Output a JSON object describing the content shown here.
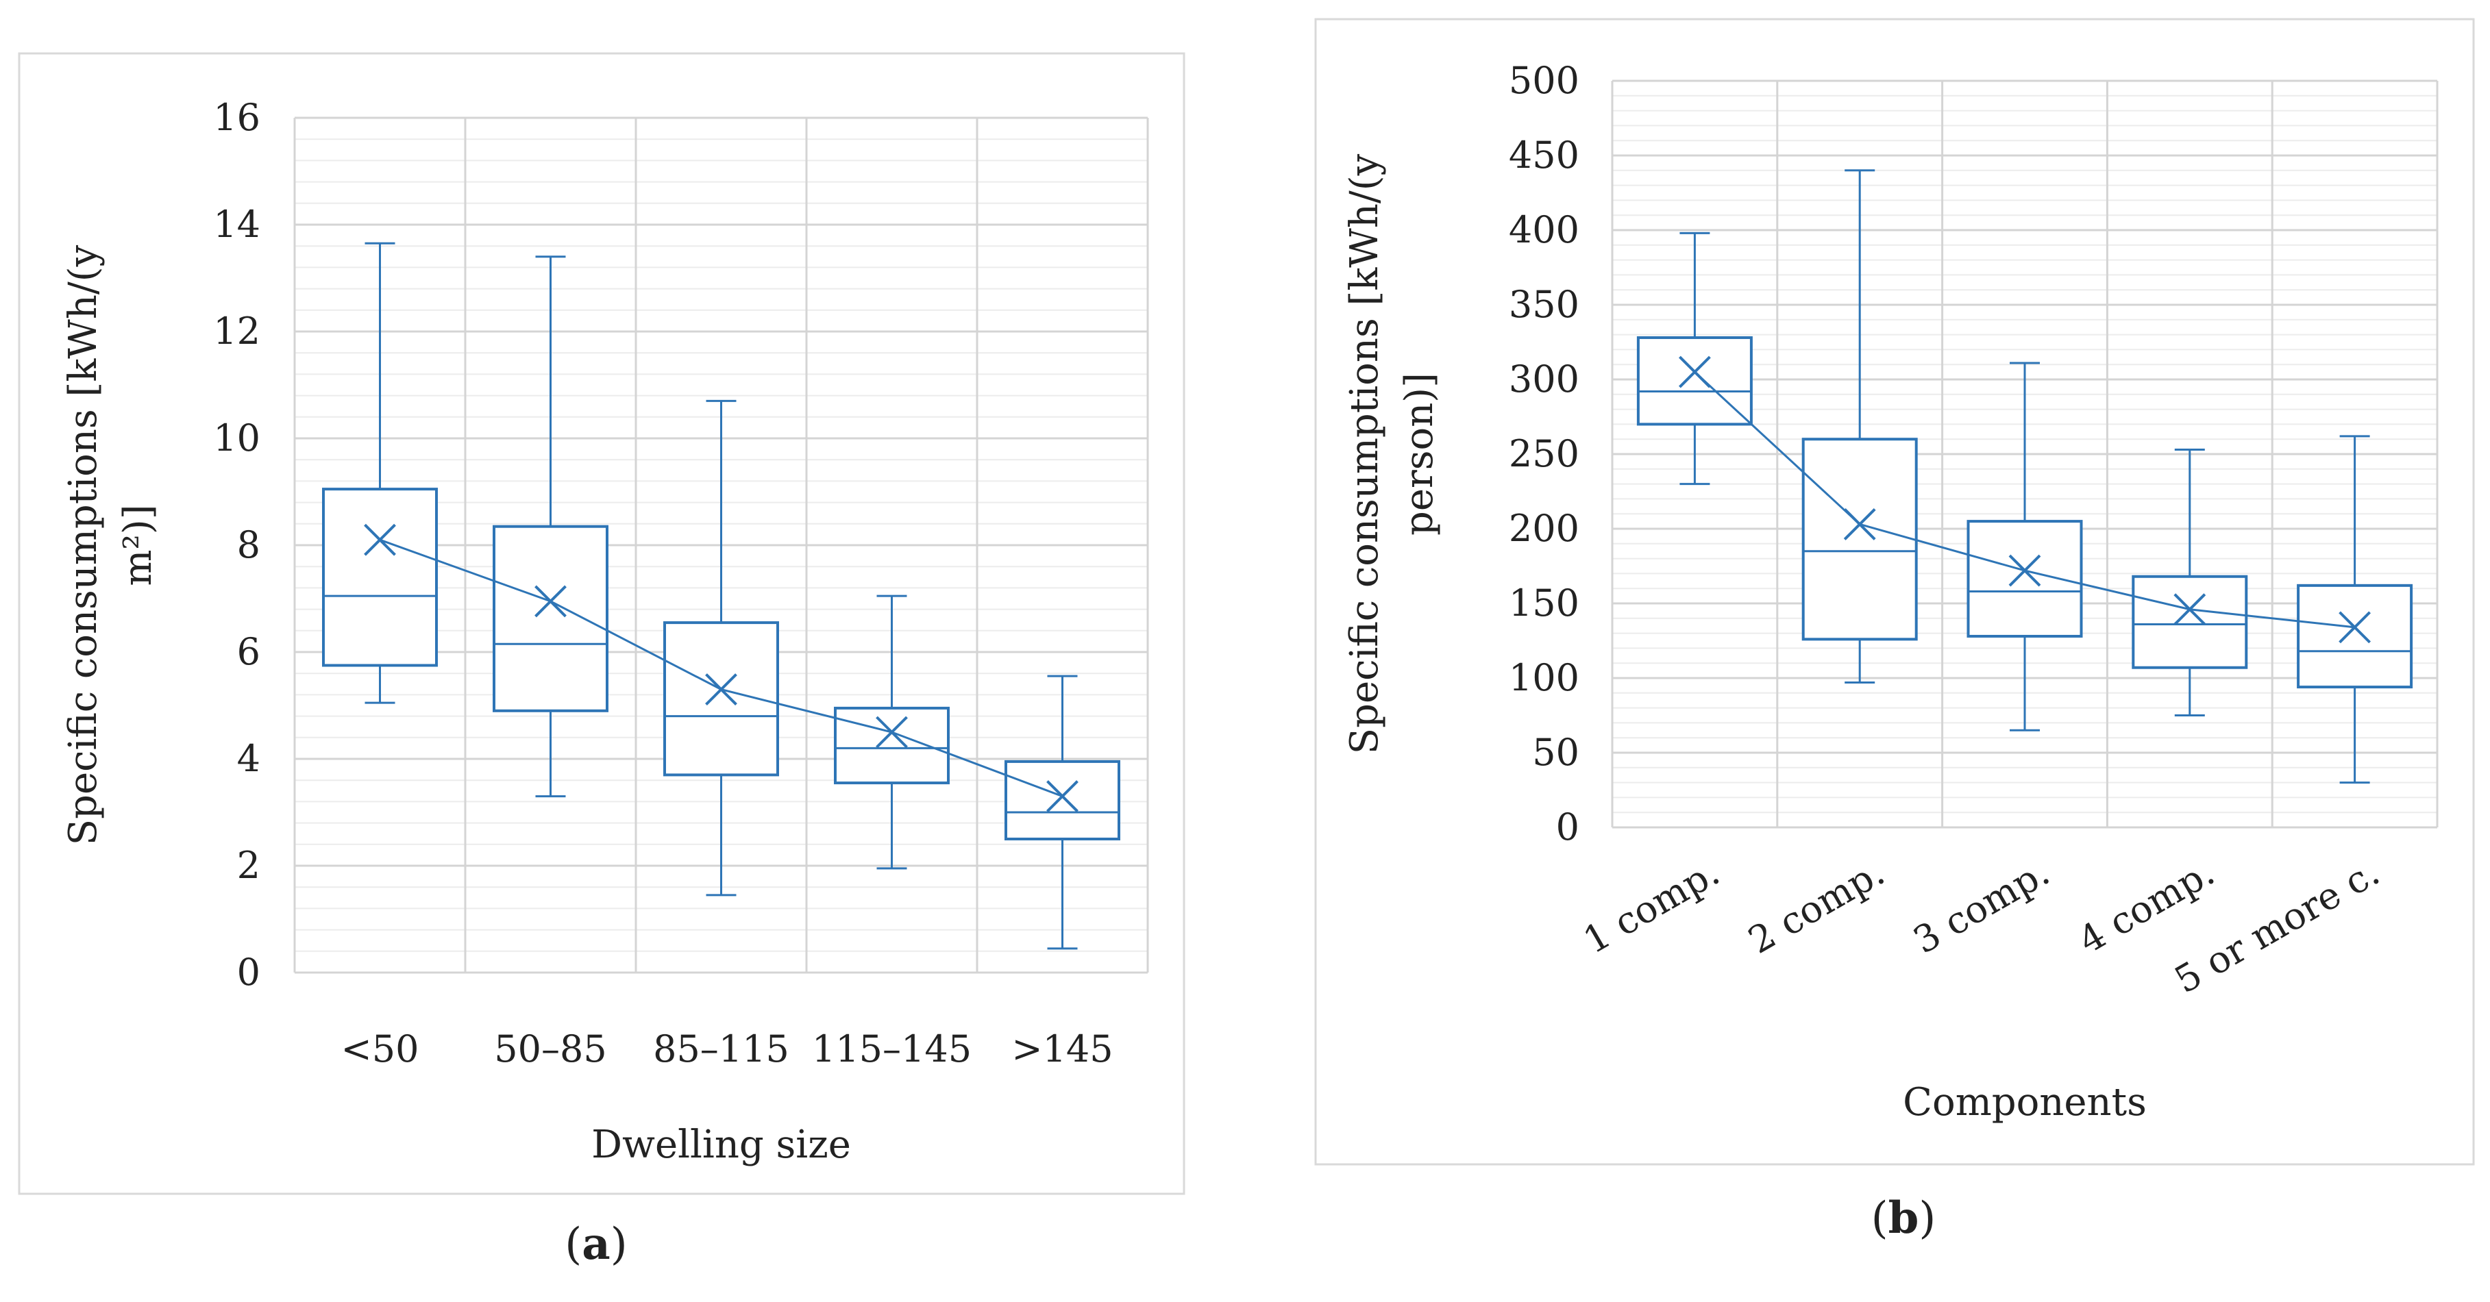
{
  "chart_data": [
    {
      "type": "box",
      "panel_label": "a",
      "xlabel": "Dwelling size",
      "ylabel": "Specific consumptions [kWh/(y m²)]",
      "ylabel_lines": [
        "Specific consumptions [kWh/(y",
        "m²)]"
      ],
      "ylim": [
        0,
        16
      ],
      "yticks": [
        0,
        2,
        4,
        6,
        8,
        10,
        12,
        14,
        16
      ],
      "minor_step": 0.4,
      "categories": [
        "<50",
        "50–85",
        "85–115",
        "115–145",
        ">145"
      ],
      "boxes": [
        {
          "min": 5.05,
          "q1": 5.75,
          "median": 7.05,
          "q3": 9.05,
          "max": 13.65,
          "mean": 8.1
        },
        {
          "min": 3.3,
          "q1": 4.9,
          "median": 6.15,
          "q3": 8.35,
          "max": 13.4,
          "mean": 6.95
        },
        {
          "min": 1.45,
          "q1": 3.7,
          "median": 4.8,
          "q3": 6.55,
          "max": 10.7,
          "mean": 5.3
        },
        {
          "min": 1.95,
          "q1": 3.55,
          "median": 4.2,
          "q3": 4.95,
          "max": 7.05,
          "mean": 4.5
        },
        {
          "min": 0.45,
          "q1": 2.5,
          "median": 3.0,
          "q3": 3.95,
          "max": 5.55,
          "mean": 3.3
        }
      ],
      "color": "#2e75b6"
    },
    {
      "type": "box",
      "panel_label": "b",
      "xlabel": "Components",
      "ylabel": "Specific consumptions [kWh/(y person)]",
      "ylabel_lines": [
        "Specific consumptions [kWh/(y",
        "person)]"
      ],
      "ylim": [
        0,
        500
      ],
      "yticks": [
        0,
        50,
        100,
        150,
        200,
        250,
        300,
        350,
        400,
        450,
        500
      ],
      "minor_step": 10,
      "categories": [
        "1 comp.",
        "2 comp.",
        "3 comp.",
        "4 comp.",
        "5 or more c."
      ],
      "boxes": [
        {
          "min": 230,
          "q1": 270,
          "median": 292,
          "q3": 328,
          "max": 398,
          "mean": 305
        },
        {
          "min": 97,
          "q1": 126,
          "median": 185,
          "q3": 260,
          "max": 440,
          "mean": 203
        },
        {
          "min": 65,
          "q1": 128,
          "median": 158,
          "q3": 205,
          "max": 311,
          "mean": 172
        },
        {
          "min": 75,
          "q1": 107,
          "median": 136,
          "q3": 168,
          "max": 253,
          "mean": 146
        },
        {
          "min": 30,
          "q1": 94,
          "median": 118,
          "q3": 162,
          "max": 262,
          "mean": 134
        }
      ],
      "color": "#2e75b6"
    }
  ]
}
